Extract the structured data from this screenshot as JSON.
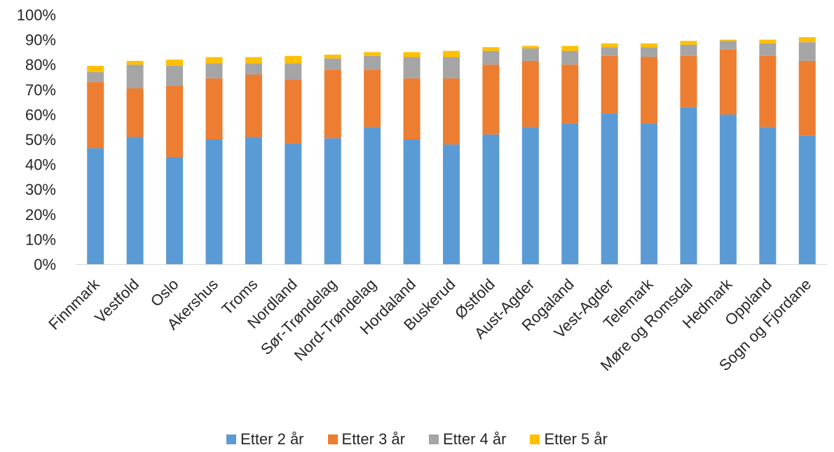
{
  "chart_data": {
    "type": "bar",
    "stacked": true,
    "categories": [
      "Finnmark",
      "Vestfold",
      "Oslo",
      "Akershus",
      "Troms",
      "Nordland",
      "Sør-Trøndelag",
      "Nord-Trøndelag",
      "Hordaland",
      "Buskerud",
      "Østfold",
      "Aust-Agder",
      "Rogaland",
      "Vest-Agder",
      "Telemark",
      "Møre og Romsdal",
      "Hedmark",
      "Oppland",
      "Sogn og Fjordane"
    ],
    "series": [
      {
        "name": "Etter 2 år",
        "color": "#5B9BD5",
        "values": [
          46.5,
          51,
          43,
          50,
          51,
          48.5,
          50.5,
          55,
          50,
          48,
          52,
          55,
          56.5,
          60.5,
          56.5,
          63,
          60,
          55,
          51.5
        ]
      },
      {
        "name": "Etter 3 år",
        "color": "#ED7D31",
        "values": [
          26.5,
          19.5,
          28.5,
          24.5,
          25,
          25.5,
          27.5,
          23,
          24.5,
          26.5,
          28,
          26.5,
          23.5,
          23,
          26.5,
          20.5,
          26,
          28.5,
          30
        ]
      },
      {
        "name": "Etter 4 år",
        "color": "#A5A5A5",
        "values": [
          4,
          9.5,
          8,
          6,
          4.5,
          6.5,
          4.5,
          5.5,
          8.5,
          8.5,
          5.5,
          5,
          5.5,
          3.5,
          4,
          4.5,
          3.5,
          5,
          7.5
        ]
      },
      {
        "name": "Etter 5 år",
        "color": "#FFC000",
        "values": [
          2.5,
          1.5,
          2.5,
          2.5,
          2.5,
          3,
          1.5,
          1.5,
          2,
          2.5,
          1.5,
          1,
          2,
          1.5,
          1.5,
          1.5,
          0.5,
          1.5,
          2
        ]
      }
    ],
    "yticks": [
      "0%",
      "10%",
      "20%",
      "30%",
      "40%",
      "50%",
      "60%",
      "70%",
      "80%",
      "90%",
      "100%"
    ],
    "ylim": [
      0,
      100
    ],
    "grid": false,
    "legend_position": "bottom",
    "title": "",
    "xlabel": "",
    "ylabel": ""
  }
}
